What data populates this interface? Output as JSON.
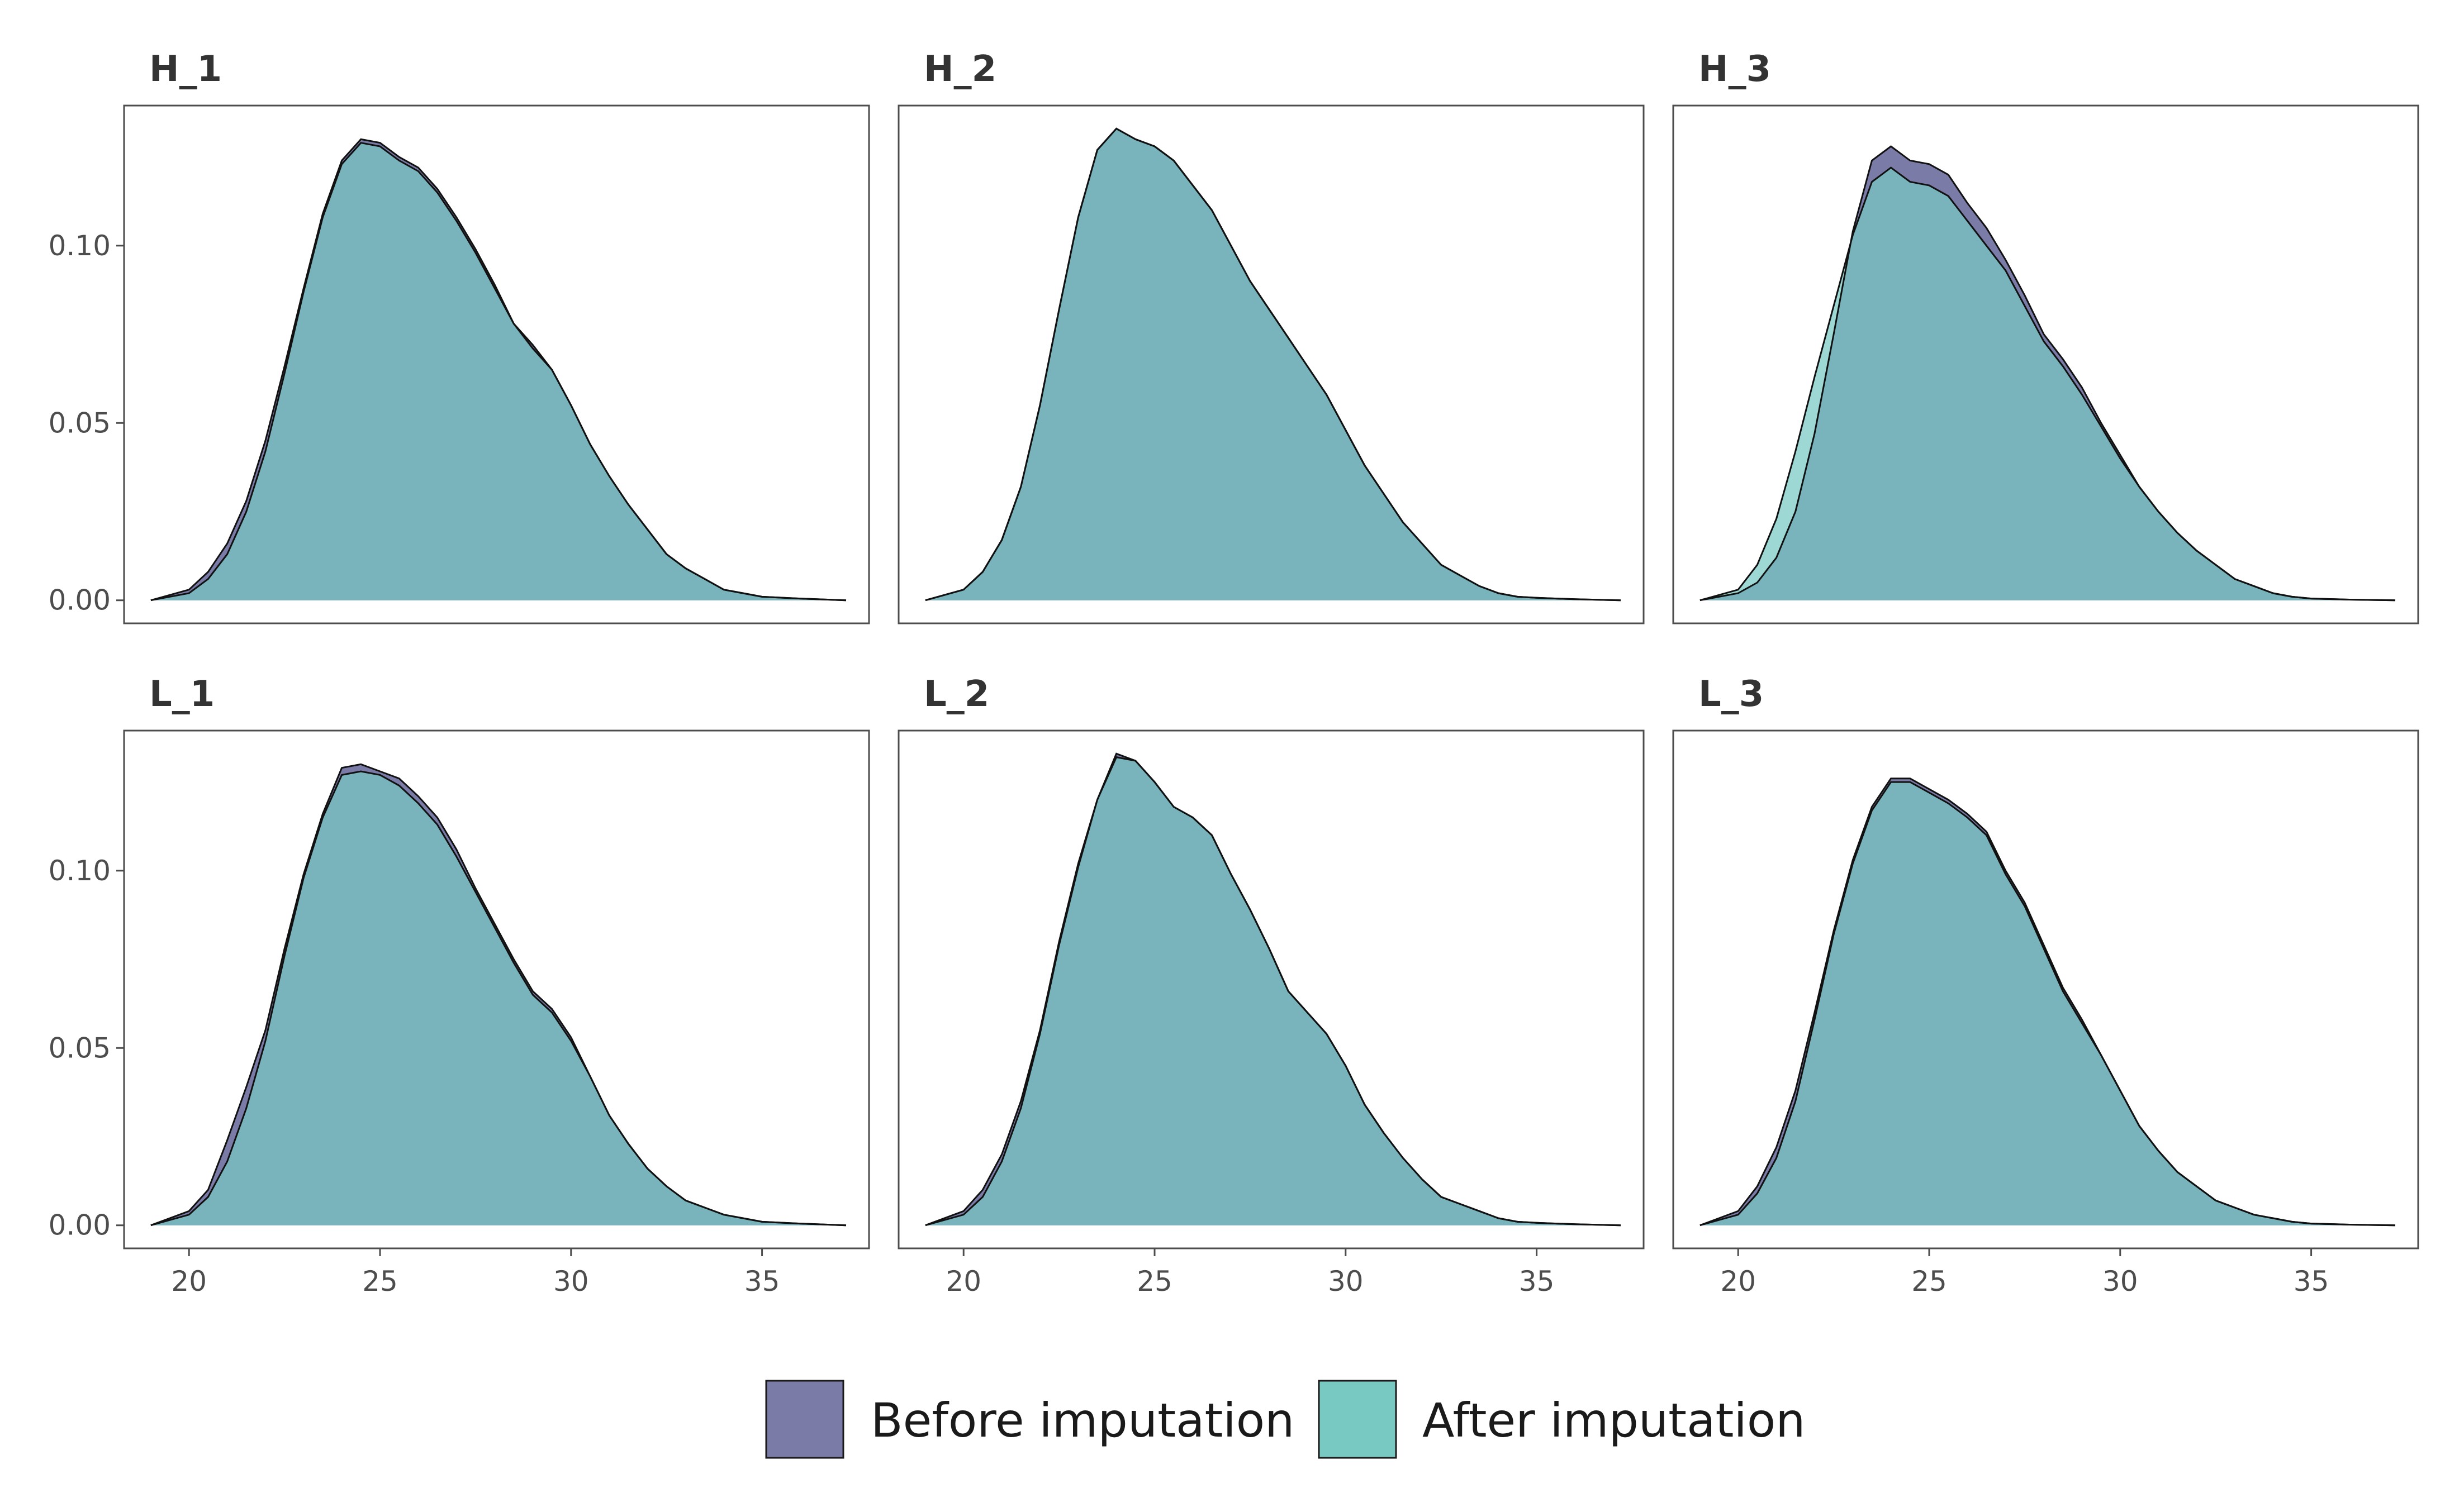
{
  "chart_data": {
    "type": "area",
    "legend": {
      "position": "bottom",
      "items": [
        {
          "name": "Before imputation",
          "color": "#7B7BA8"
        },
        {
          "name": "After imputation",
          "color": "#79C9C3"
        }
      ]
    },
    "overlap_color": "#52A2AB",
    "xlim": [
      18.3,
      37.8
    ],
    "ylim": [
      -0.0065,
      0.1395
    ],
    "x_ticks": [
      20,
      25,
      30,
      35
    ],
    "x_tick_labels": [
      "20",
      "25",
      "30",
      "35"
    ],
    "y_ticks": [
      0.0,
      0.05,
      0.1
    ],
    "y_tick_labels": [
      "0.00",
      "0.05",
      "0.10"
    ],
    "grid": false,
    "panels": [
      {
        "title": "H_1",
        "series": [
          {
            "name": "Before imputation",
            "x": [
              19,
              20,
              20.5,
              21,
              21.5,
              22,
              22.5,
              23,
              23.5,
              24,
              24.5,
              25,
              25.5,
              26,
              26.5,
              27,
              27.5,
              28,
              28.5,
              29,
              29.5,
              30,
              30.5,
              31,
              31.5,
              32,
              32.5,
              33,
              33.5,
              34,
              34.5,
              35,
              36,
              37.2
            ],
            "y": [
              0,
              0.003,
              0.008,
              0.016,
              0.028,
              0.045,
              0.066,
              0.088,
              0.109,
              0.124,
              0.13,
              0.129,
              0.125,
              0.122,
              0.116,
              0.108,
              0.099,
              0.089,
              0.078,
              0.072,
              0.065,
              0.055,
              0.044,
              0.035,
              0.027,
              0.02,
              0.013,
              0.009,
              0.006,
              0.003,
              0.002,
              0.001,
              0.0005,
              0
            ]
          },
          {
            "name": "After imputation",
            "x": [
              19,
              20,
              20.5,
              21,
              21.5,
              22,
              22.5,
              23,
              23.5,
              24,
              24.5,
              25,
              25.5,
              26,
              26.5,
              27,
              27.5,
              28,
              28.5,
              29,
              29.5,
              30,
              30.5,
              31,
              31.5,
              32,
              32.5,
              33,
              33.5,
              34,
              34.5,
              35,
              36,
              37.2
            ],
            "y": [
              0,
              0.002,
              0.006,
              0.013,
              0.025,
              0.042,
              0.064,
              0.087,
              0.108,
              0.123,
              0.129,
              0.128,
              0.124,
              0.121,
              0.115,
              0.107,
              0.098,
              0.088,
              0.078,
              0.071,
              0.065,
              0.055,
              0.044,
              0.035,
              0.027,
              0.02,
              0.013,
              0.009,
              0.006,
              0.003,
              0.002,
              0.001,
              0.0005,
              0
            ]
          }
        ]
      },
      {
        "title": "H_2",
        "series": [
          {
            "name": "Before imputation",
            "x": [
              19,
              20,
              20.5,
              21,
              21.5,
              22,
              22.5,
              23,
              23.5,
              24,
              24.5,
              25,
              25.5,
              26,
              26.5,
              27,
              27.5,
              28,
              28.5,
              29,
              29.5,
              30,
              30.5,
              31,
              31.5,
              32,
              32.5,
              33,
              33.5,
              34,
              34.5,
              35,
              36,
              37.2
            ],
            "y": [
              0,
              0.003,
              0.008,
              0.017,
              0.032,
              0.055,
              0.082,
              0.108,
              0.127,
              0.133,
              0.13,
              0.128,
              0.124,
              0.117,
              0.11,
              0.1,
              0.09,
              0.082,
              0.074,
              0.066,
              0.058,
              0.048,
              0.038,
              0.03,
              0.022,
              0.016,
              0.01,
              0.007,
              0.004,
              0.002,
              0.001,
              0.0007,
              0.0003,
              0
            ]
          },
          {
            "name": "After imputation",
            "x": [
              19,
              20,
              20.5,
              21,
              21.5,
              22,
              22.5,
              23,
              23.5,
              24,
              24.5,
              25,
              25.5,
              26,
              26.5,
              27,
              27.5,
              28,
              28.5,
              29,
              29.5,
              30,
              30.5,
              31,
              31.5,
              32,
              32.5,
              33,
              33.5,
              34,
              34.5,
              35,
              36,
              37.2
            ],
            "y": [
              0,
              0.003,
              0.008,
              0.017,
              0.032,
              0.055,
              0.082,
              0.108,
              0.127,
              0.133,
              0.13,
              0.128,
              0.124,
              0.117,
              0.11,
              0.1,
              0.09,
              0.082,
              0.074,
              0.066,
              0.058,
              0.048,
              0.038,
              0.03,
              0.022,
              0.016,
              0.01,
              0.007,
              0.004,
              0.002,
              0.001,
              0.0007,
              0.0003,
              0
            ]
          }
        ]
      },
      {
        "title": "H_3",
        "series": [
          {
            "name": "Before imputation",
            "x": [
              19,
              20,
              20.5,
              21,
              21.5,
              22,
              22.5,
              23,
              23.5,
              24,
              24.5,
              25,
              25.5,
              26,
              26.5,
              27,
              27.5,
              28,
              28.5,
              29,
              29.5,
              30,
              30.5,
              31,
              31.5,
              32,
              32.5,
              33,
              33.5,
              34,
              34.5,
              35,
              36,
              37.2
            ],
            "y": [
              0,
              0.002,
              0.005,
              0.012,
              0.025,
              0.047,
              0.075,
              0.104,
              0.124,
              0.128,
              0.124,
              0.123,
              0.12,
              0.112,
              0.105,
              0.096,
              0.086,
              0.075,
              0.068,
              0.06,
              0.05,
              0.041,
              0.032,
              0.025,
              0.019,
              0.014,
              0.01,
              0.006,
              0.004,
              0.002,
              0.001,
              0.0005,
              0.0002,
              0
            ]
          },
          {
            "name": "After imputation",
            "x": [
              19,
              20,
              20.5,
              21,
              21.5,
              22,
              22.5,
              23,
              23.5,
              24,
              24.5,
              25,
              25.5,
              26,
              26.5,
              27,
              27.5,
              28,
              28.5,
              29,
              29.5,
              30,
              30.5,
              31,
              31.5,
              32,
              32.5,
              33,
              33.5,
              34,
              34.5,
              35,
              36,
              37.2
            ],
            "y": [
              0,
              0.003,
              0.01,
              0.023,
              0.042,
              0.063,
              0.083,
              0.103,
              0.118,
              0.122,
              0.118,
              0.117,
              0.114,
              0.107,
              0.1,
              0.093,
              0.083,
              0.073,
              0.066,
              0.058,
              0.049,
              0.04,
              0.032,
              0.025,
              0.019,
              0.014,
              0.01,
              0.006,
              0.004,
              0.002,
              0.001,
              0.0005,
              0.0002,
              0
            ]
          }
        ]
      },
      {
        "title": "L_1",
        "series": [
          {
            "name": "Before imputation",
            "x": [
              19,
              20,
              20.5,
              21,
              21.5,
              22,
              22.5,
              23,
              23.5,
              24,
              24.5,
              25,
              25.5,
              26,
              26.5,
              27,
              27.5,
              28,
              28.5,
              29,
              29.5,
              30,
              30.5,
              31,
              31.5,
              32,
              32.5,
              33,
              33.5,
              34,
              34.5,
              35,
              36,
              37.2
            ],
            "y": [
              0,
              0.004,
              0.01,
              0.024,
              0.039,
              0.055,
              0.078,
              0.099,
              0.116,
              0.129,
              0.13,
              0.128,
              0.126,
              0.121,
              0.115,
              0.106,
              0.095,
              0.085,
              0.075,
              0.066,
              0.061,
              0.053,
              0.042,
              0.031,
              0.023,
              0.016,
              0.011,
              0.007,
              0.005,
              0.003,
              0.002,
              0.001,
              0.0005,
              0
            ]
          },
          {
            "name": "After imputation",
            "x": [
              19,
              20,
              20.5,
              21,
              21.5,
              22,
              22.5,
              23,
              23.5,
              24,
              24.5,
              25,
              25.5,
              26,
              26.5,
              27,
              27.5,
              28,
              28.5,
              29,
              29.5,
              30,
              30.5,
              31,
              31.5,
              32,
              32.5,
              33,
              33.5,
              34,
              34.5,
              35,
              36,
              37.2
            ],
            "y": [
              0,
              0.003,
              0.008,
              0.018,
              0.033,
              0.052,
              0.076,
              0.098,
              0.115,
              0.127,
              0.128,
              0.127,
              0.124,
              0.119,
              0.113,
              0.104,
              0.094,
              0.084,
              0.074,
              0.065,
              0.06,
              0.052,
              0.042,
              0.031,
              0.023,
              0.016,
              0.011,
              0.007,
              0.005,
              0.003,
              0.002,
              0.001,
              0.0005,
              0
            ]
          }
        ]
      },
      {
        "title": "L_2",
        "series": [
          {
            "name": "Before imputation",
            "x": [
              19,
              20,
              20.5,
              21,
              21.5,
              22,
              22.5,
              23,
              23.5,
              24,
              24.5,
              25,
              25.5,
              26,
              26.5,
              27,
              27.5,
              28,
              28.5,
              29,
              29.5,
              30,
              30.5,
              31,
              31.5,
              32,
              32.5,
              33,
              33.5,
              34,
              34.5,
              35,
              36,
              37.2
            ],
            "y": [
              0,
              0.004,
              0.01,
              0.02,
              0.035,
              0.055,
              0.08,
              0.102,
              0.12,
              0.133,
              0.131,
              0.125,
              0.118,
              0.115,
              0.11,
              0.099,
              0.089,
              0.078,
              0.066,
              0.06,
              0.054,
              0.045,
              0.034,
              0.026,
              0.019,
              0.013,
              0.008,
              0.006,
              0.004,
              0.002,
              0.001,
              0.0007,
              0.0003,
              0
            ]
          },
          {
            "name": "After imputation",
            "x": [
              19,
              20,
              20.5,
              21,
              21.5,
              22,
              22.5,
              23,
              23.5,
              24,
              24.5,
              25,
              25.5,
              26,
              26.5,
              27,
              27.5,
              28,
              28.5,
              29,
              29.5,
              30,
              30.5,
              31,
              31.5,
              32,
              32.5,
              33,
              33.5,
              34,
              34.5,
              35,
              36,
              37.2
            ],
            "y": [
              0,
              0.003,
              0.008,
              0.018,
              0.033,
              0.054,
              0.079,
              0.101,
              0.12,
              0.132,
              0.131,
              0.125,
              0.118,
              0.115,
              0.11,
              0.099,
              0.089,
              0.078,
              0.066,
              0.06,
              0.054,
              0.045,
              0.034,
              0.026,
              0.019,
              0.013,
              0.008,
              0.006,
              0.004,
              0.002,
              0.001,
              0.0007,
              0.0003,
              0
            ]
          }
        ]
      },
      {
        "title": "L_3",
        "series": [
          {
            "name": "Before imputation",
            "x": [
              19,
              20,
              20.5,
              21,
              21.5,
              22,
              22.5,
              23,
              23.5,
              24,
              24.5,
              25,
              25.5,
              26,
              26.5,
              27,
              27.5,
              28,
              28.5,
              29,
              29.5,
              30,
              30.5,
              31,
              31.5,
              32,
              32.5,
              33,
              33.5,
              34,
              34.5,
              35,
              36,
              37.2
            ],
            "y": [
              0,
              0.004,
              0.011,
              0.022,
              0.038,
              0.06,
              0.083,
              0.103,
              0.118,
              0.126,
              0.126,
              0.123,
              0.12,
              0.116,
              0.111,
              0.1,
              0.091,
              0.079,
              0.067,
              0.058,
              0.048,
              0.038,
              0.028,
              0.021,
              0.015,
              0.011,
              0.007,
              0.005,
              0.003,
              0.002,
              0.001,
              0.0005,
              0.0002,
              0
            ]
          },
          {
            "name": "After imputation",
            "x": [
              19,
              20,
              20.5,
              21,
              21.5,
              22,
              22.5,
              23,
              23.5,
              24,
              24.5,
              25,
              25.5,
              26,
              26.5,
              27,
              27.5,
              28,
              28.5,
              29,
              29.5,
              30,
              30.5,
              31,
              31.5,
              32,
              32.5,
              33,
              33.5,
              34,
              34.5,
              35,
              36,
              37.2
            ],
            "y": [
              0,
              0.003,
              0.009,
              0.019,
              0.035,
              0.058,
              0.082,
              0.102,
              0.117,
              0.125,
              0.125,
              0.122,
              0.119,
              0.115,
              0.11,
              0.099,
              0.09,
              0.078,
              0.066,
              0.057,
              0.048,
              0.038,
              0.028,
              0.021,
              0.015,
              0.011,
              0.007,
              0.005,
              0.003,
              0.002,
              0.001,
              0.0005,
              0.0002,
              0
            ]
          }
        ]
      }
    ]
  }
}
